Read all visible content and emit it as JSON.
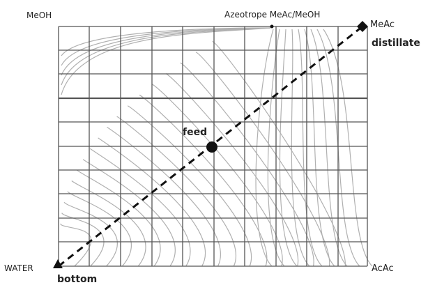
{
  "labels": {
    "top_left": "MeOH",
    "azeotrope": "Azeotrope MeAc/MeOH",
    "top_right": "MeAc",
    "distillate": "distillate",
    "feed": "feed",
    "bottom_left": "WATER",
    "bottom": "bottom",
    "bottom_right": "AcAc"
  },
  "colors": {
    "grid": "#555555",
    "curves": "#b0b0b0",
    "line": "#111111",
    "markers": "#111111"
  }
}
